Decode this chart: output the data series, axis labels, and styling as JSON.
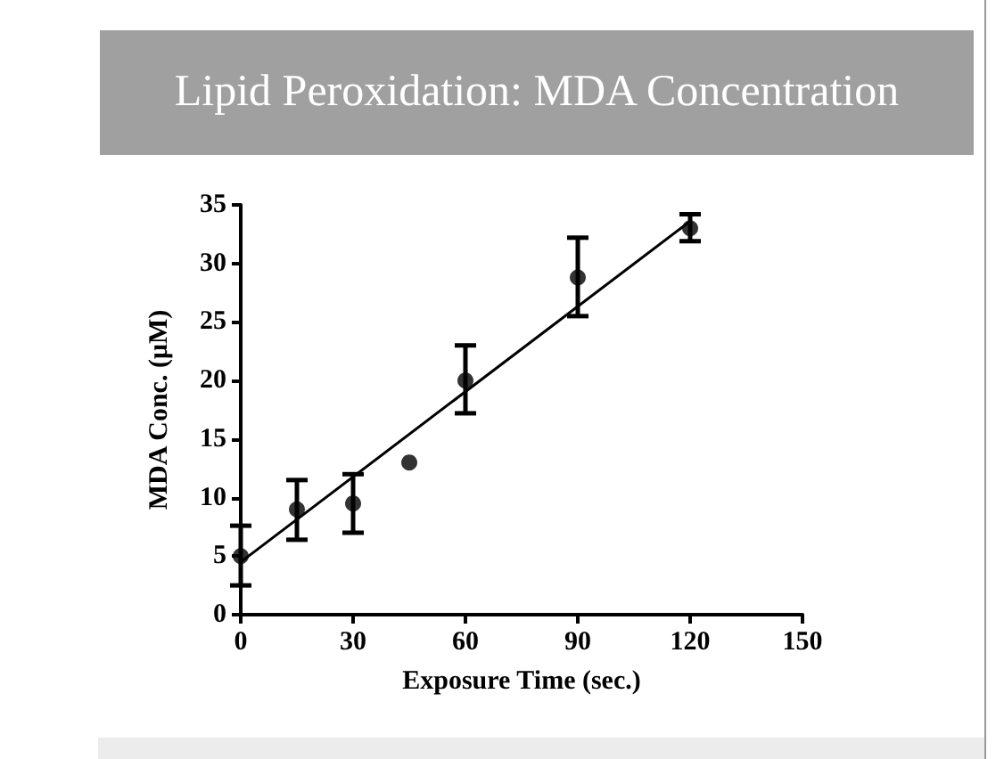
{
  "chart_data": {
    "type": "scatter",
    "title": "Lipid Peroxidation: MDA Concentration",
    "xlabel": "Exposure Time (sec.)",
    "ylabel": "MDA Conc. (μM)",
    "series": [
      {
        "color": "#000000",
        "x": [
          0,
          15,
          30,
          45,
          60,
          90,
          120
        ],
        "values": [
          5,
          9,
          9.5,
          13,
          20,
          28.8,
          33
        ],
        "errors": [
          [
            2.5,
            7.6
          ],
          [
            6.4,
            11.5
          ],
          [
            7,
            12
          ],
          null,
          [
            17.2,
            23
          ],
          [
            25.5,
            32.2
          ],
          [
            31.9,
            34.2
          ]
        ]
      },
      {
        "type": "line",
        "color": "#000000",
        "x": [
          0,
          120
        ],
        "values": [
          4.5,
          33.6
        ],
        "line_style": "solid",
        "marker": "none"
      }
    ],
    "marker": "circle",
    "xlim": [
      0,
      150
    ],
    "xticks": [
      0,
      30,
      60,
      90,
      120,
      150
    ],
    "ylim": [
      0,
      35
    ],
    "yticks": [
      0,
      5,
      10,
      15,
      20,
      25,
      30,
      35
    ],
    "grid": false
  }
}
